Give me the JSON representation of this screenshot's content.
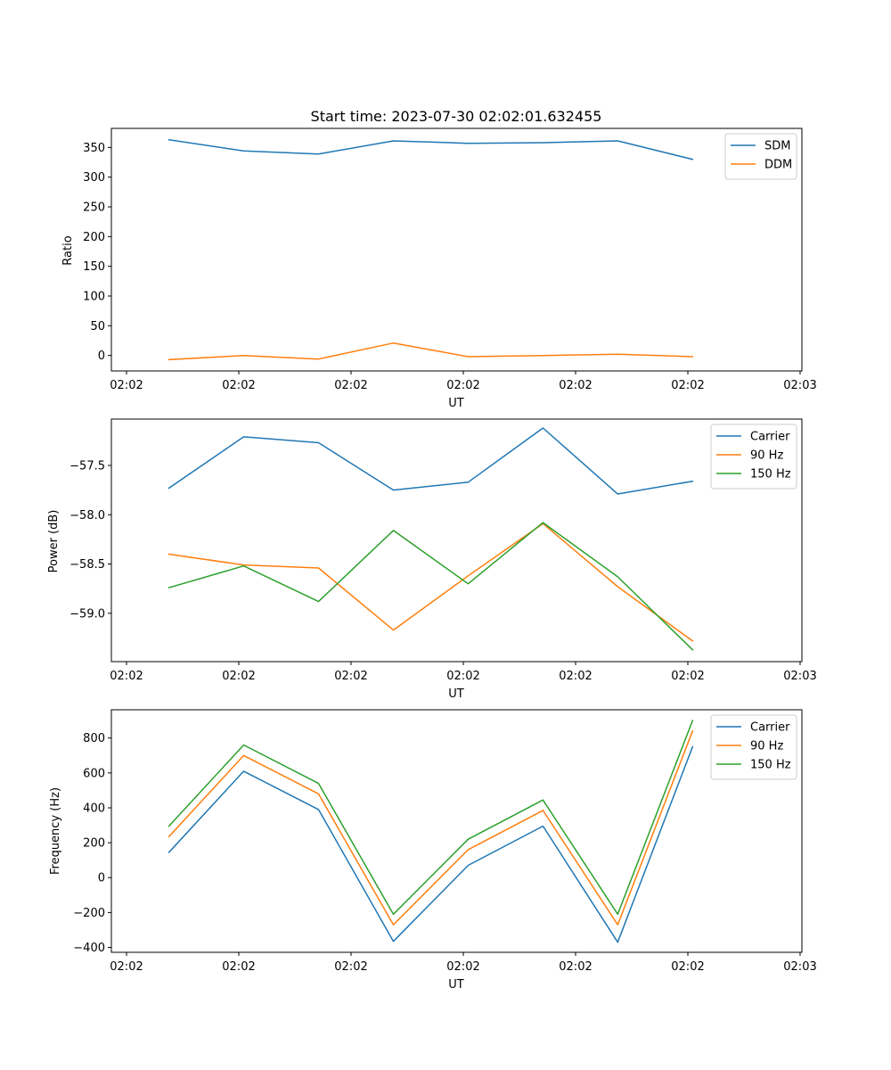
{
  "title": "Start time: 2023-07-30 02:02:01.632455",
  "colors": {
    "c0": "#1f77b4",
    "c1": "#ff7f0e",
    "c2": "#2ca02c"
  },
  "chart_data": [
    {
      "type": "line",
      "title": "Start time: 2023-07-30 02:02:01.632455",
      "xlabel": "UT",
      "ylabel": "Ratio",
      "x_tick_labels": [
        "02:02",
        "02:02",
        "02:02",
        "02:02",
        "02:02",
        "02:02",
        "02:03"
      ],
      "x_index": [
        0.5,
        1.15,
        1.8,
        2.45,
        3.1,
        3.75,
        4.4,
        5.05
      ],
      "xlim": [
        0,
        6
      ],
      "yticks": [
        0,
        50,
        100,
        150,
        200,
        250,
        300,
        350
      ],
      "y_tick_labels": [
        "0",
        "50",
        "100",
        "150",
        "200",
        "250",
        "300",
        "350"
      ],
      "ylim": [
        -26,
        382
      ],
      "legend": "top-right",
      "series": [
        {
          "name": "SDM",
          "color": "#1f77b4",
          "values": [
            363,
            344,
            339,
            361,
            357,
            358,
            361,
            330
          ]
        },
        {
          "name": "DDM",
          "color": "#ff7f0e",
          "values": [
            -7,
            0,
            -6,
            21,
            -2,
            0,
            2,
            -2
          ]
        }
      ]
    },
    {
      "type": "line",
      "title": "",
      "xlabel": "UT",
      "ylabel": "Power (dB)",
      "x_tick_labels": [
        "02:02",
        "02:02",
        "02:02",
        "02:02",
        "02:02",
        "02:02",
        "02:03"
      ],
      "x_index": [
        0.5,
        1.15,
        1.8,
        2.45,
        3.1,
        3.75,
        4.4,
        5.05
      ],
      "xlim": [
        0,
        6
      ],
      "yticks": [
        -59.0,
        -58.5,
        -58.0,
        -57.5
      ],
      "y_tick_labels": [
        "−59.0",
        "−58.5",
        "−58.0",
        "−57.5"
      ],
      "ylim": [
        -59.49,
        -57.03
      ],
      "legend": "top-right",
      "series": [
        {
          "name": "Carrier",
          "color": "#1f77b4",
          "values": [
            -57.73,
            -57.21,
            -57.27,
            -57.75,
            -57.67,
            -57.12,
            -57.79,
            -57.66
          ]
        },
        {
          "name": "90 Hz",
          "color": "#ff7f0e",
          "values": [
            -58.4,
            -58.51,
            -58.54,
            -59.17,
            -58.62,
            -58.09,
            -58.73,
            -59.28
          ]
        },
        {
          "name": "150 Hz",
          "color": "#2ca02c",
          "values": [
            -58.74,
            -58.52,
            -58.88,
            -58.16,
            -58.7,
            -58.08,
            -58.63,
            -59.37
          ]
        }
      ]
    },
    {
      "type": "line",
      "title": "",
      "xlabel": "UT",
      "ylabel": "Frequency (Hz)",
      "x_tick_labels": [
        "02:02",
        "02:02",
        "02:02",
        "02:02",
        "02:02",
        "02:02",
        "02:03"
      ],
      "x_index": [
        0.5,
        1.15,
        1.8,
        2.45,
        3.1,
        3.75,
        4.4,
        5.05
      ],
      "xlim": [
        0,
        6
      ],
      "yticks": [
        -400,
        -200,
        0,
        200,
        400,
        600,
        800
      ],
      "y_tick_labels": [
        "−400",
        "−200",
        "0",
        "200",
        "400",
        "600",
        "800"
      ],
      "ylim": [
        -428,
        962
      ],
      "legend": "top-right",
      "series": [
        {
          "name": "Carrier",
          "color": "#1f77b4",
          "values": [
            145,
            610,
            390,
            -365,
            70,
            295,
            -370,
            750
          ]
        },
        {
          "name": "90 Hz",
          "color": "#ff7f0e",
          "values": [
            235,
            700,
            480,
            -270,
            160,
            385,
            -270,
            840
          ]
        },
        {
          "name": "150 Hz",
          "color": "#2ca02c",
          "values": [
            295,
            760,
            540,
            -210,
            220,
            445,
            -210,
            900
          ]
        }
      ]
    }
  ]
}
